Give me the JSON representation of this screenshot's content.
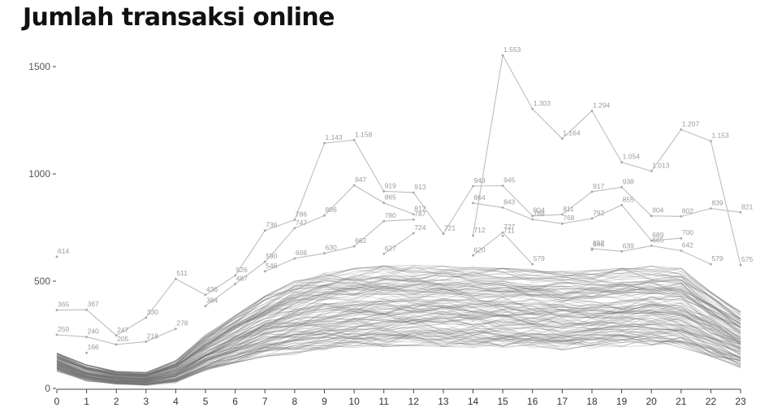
{
  "chart_data": {
    "type": "line",
    "title": "Jumlah transaksi online",
    "xlabel": "",
    "ylabel": "",
    "x": [
      0,
      1,
      2,
      3,
      4,
      5,
      6,
      7,
      8,
      9,
      10,
      11,
      12,
      13,
      14,
      15,
      16,
      17,
      18,
      19,
      20,
      21,
      22,
      23
    ],
    "xlim": [
      0,
      23
    ],
    "ylim": [
      0,
      1600
    ],
    "yticks": [
      0,
      500,
      1000,
      1500
    ],
    "grid": false,
    "background_band": {
      "description": "many overlapping gray series; envelope shown as representative values",
      "x": [
        0,
        1,
        2,
        3,
        4,
        5,
        6,
        7,
        8,
        9,
        10,
        11,
        12,
        13,
        14,
        15,
        16,
        17,
        18,
        19,
        20,
        21,
        22,
        23
      ],
      "upper": [
        165,
        110,
        80,
        75,
        130,
        250,
        340,
        430,
        500,
        540,
        560,
        570,
        575,
        570,
        565,
        560,
        555,
        545,
        550,
        560,
        570,
        560,
        450,
        360
      ],
      "lower": [
        80,
        35,
        20,
        15,
        25,
        80,
        120,
        150,
        160,
        180,
        190,
        195,
        200,
        195,
        190,
        190,
        185,
        180,
        185,
        195,
        200,
        190,
        150,
        95
      ]
    },
    "series": [
      {
        "values": [
          250,
          240,
          205,
          218,
          278,
          null,
          null,
          null,
          null,
          null,
          null,
          null,
          null,
          null,
          null,
          null,
          null,
          null,
          null,
          null,
          null,
          null,
          null,
          null
        ]
      },
      {
        "values": [
          365,
          367,
          247,
          330,
          511,
          436,
          526,
          736,
          786,
          1143,
          1158,
          919,
          913,
          721,
          943,
          945,
          804,
          811,
          917,
          938,
          804,
          802,
          839,
          821
        ]
      },
      {
        "values": [
          614,
          null,
          null,
          null,
          null,
          384,
          487,
          590,
          747,
          806,
          947,
          865,
          812,
          null,
          864,
          843,
          788,
          768,
          792,
          855,
          689,
          700,
          null,
          null
        ]
      },
      {
        "values": [
          null,
          166,
          null,
          null,
          null,
          null,
          null,
          546,
          606,
          630,
          662,
          780,
          787,
          null,
          712,
          1553,
          1303,
          1164,
          1294,
          1054,
          1013,
          1207,
          1153,
          575
        ]
      },
      {
        "values": [
          null,
          null,
          null,
          null,
          null,
          null,
          null,
          null,
          null,
          null,
          null,
          627,
          724,
          null,
          620,
          727,
          579,
          null,
          652,
          639,
          665,
          642,
          579,
          null
        ]
      },
      {
        "values": [
          null,
          null,
          null,
          null,
          null,
          null,
          null,
          null,
          null,
          null,
          null,
          null,
          null,
          null,
          null,
          711,
          null,
          null,
          646,
          null,
          null,
          null,
          null,
          null
        ]
      }
    ],
    "point_labels": [
      {
        "x": 0,
        "y": 614,
        "text": "614"
      },
      {
        "x": 0,
        "y": 365,
        "text": "365"
      },
      {
        "x": 0,
        "y": 250,
        "text": "250"
      },
      {
        "x": 1,
        "y": 367,
        "text": "367"
      },
      {
        "x": 1,
        "y": 240,
        "text": "240"
      },
      {
        "x": 1,
        "y": 166,
        "text": "166"
      },
      {
        "x": 2,
        "y": 247,
        "text": "247"
      },
      {
        "x": 2,
        "y": 205,
        "text": "205"
      },
      {
        "x": 3,
        "y": 330,
        "text": "330"
      },
      {
        "x": 3,
        "y": 218,
        "text": "218"
      },
      {
        "x": 4,
        "y": 511,
        "text": "511"
      },
      {
        "x": 4,
        "y": 278,
        "text": "278"
      },
      {
        "x": 5,
        "y": 436,
        "text": "436"
      },
      {
        "x": 5,
        "y": 384,
        "text": "384"
      },
      {
        "x": 6,
        "y": 526,
        "text": "526"
      },
      {
        "x": 6,
        "y": 487,
        "text": "487"
      },
      {
        "x": 7,
        "y": 736,
        "text": "736"
      },
      {
        "x": 7,
        "y": 590,
        "text": "590"
      },
      {
        "x": 7,
        "y": 546,
        "text": "546"
      },
      {
        "x": 8,
        "y": 786,
        "text": "786"
      },
      {
        "x": 8,
        "y": 747,
        "text": "747"
      },
      {
        "x": 8,
        "y": 606,
        "text": "606"
      },
      {
        "x": 9,
        "y": 1143,
        "text": "1.143"
      },
      {
        "x": 9,
        "y": 806,
        "text": "806"
      },
      {
        "x": 9,
        "y": 630,
        "text": "630"
      },
      {
        "x": 10,
        "y": 1158,
        "text": "1.158"
      },
      {
        "x": 10,
        "y": 947,
        "text": "947"
      },
      {
        "x": 10,
        "y": 662,
        "text": "662"
      },
      {
        "x": 11,
        "y": 919,
        "text": "919"
      },
      {
        "x": 11,
        "y": 865,
        "text": "865"
      },
      {
        "x": 11,
        "y": 780,
        "text": "780"
      },
      {
        "x": 11,
        "y": 627,
        "text": "627"
      },
      {
        "x": 12,
        "y": 913,
        "text": "913"
      },
      {
        "x": 12,
        "y": 812,
        "text": "812"
      },
      {
        "x": 12,
        "y": 787,
        "text": "787"
      },
      {
        "x": 12,
        "y": 724,
        "text": "724"
      },
      {
        "x": 13,
        "y": 721,
        "text": "721"
      },
      {
        "x": 14,
        "y": 943,
        "text": "943"
      },
      {
        "x": 14,
        "y": 864,
        "text": "864"
      },
      {
        "x": 14,
        "y": 712,
        "text": "712"
      },
      {
        "x": 14,
        "y": 620,
        "text": "620"
      },
      {
        "x": 15,
        "y": 1553,
        "text": "1.553"
      },
      {
        "x": 15,
        "y": 945,
        "text": "945"
      },
      {
        "x": 15,
        "y": 843,
        "text": "843"
      },
      {
        "x": 15,
        "y": 727,
        "text": "727"
      },
      {
        "x": 15,
        "y": 711,
        "text": "711"
      },
      {
        "x": 16,
        "y": 1303,
        "text": "1.303"
      },
      {
        "x": 16,
        "y": 804,
        "text": "804"
      },
      {
        "x": 16,
        "y": 788,
        "text": "788"
      },
      {
        "x": 16,
        "y": 579,
        "text": "579"
      },
      {
        "x": 17,
        "y": 1164,
        "text": "1.164"
      },
      {
        "x": 17,
        "y": 811,
        "text": "811"
      },
      {
        "x": 17,
        "y": 768,
        "text": "768"
      },
      {
        "x": 18,
        "y": 1294,
        "text": "1.294"
      },
      {
        "x": 18,
        "y": 917,
        "text": "917"
      },
      {
        "x": 18,
        "y": 792,
        "text": "792"
      },
      {
        "x": 18,
        "y": 652,
        "text": "652"
      },
      {
        "x": 18,
        "y": 646,
        "text": "646"
      },
      {
        "x": 19,
        "y": 1054,
        "text": "1.054"
      },
      {
        "x": 19,
        "y": 938,
        "text": "938"
      },
      {
        "x": 19,
        "y": 855,
        "text": "855"
      },
      {
        "x": 19,
        "y": 639,
        "text": "639"
      },
      {
        "x": 20,
        "y": 1013,
        "text": "1.013"
      },
      {
        "x": 20,
        "y": 804,
        "text": "804"
      },
      {
        "x": 20,
        "y": 689,
        "text": "689"
      },
      {
        "x": 20,
        "y": 665,
        "text": "665"
      },
      {
        "x": 21,
        "y": 1207,
        "text": "1.207"
      },
      {
        "x": 21,
        "y": 802,
        "text": "802"
      },
      {
        "x": 21,
        "y": 700,
        "text": "700"
      },
      {
        "x": 21,
        "y": 642,
        "text": "642"
      },
      {
        "x": 22,
        "y": 1153,
        "text": "1.153"
      },
      {
        "x": 22,
        "y": 839,
        "text": "839"
      },
      {
        "x": 22,
        "y": 579,
        "text": "579"
      },
      {
        "x": 23,
        "y": 821,
        "text": "821"
      },
      {
        "x": 23,
        "y": 575,
        "text": "575"
      }
    ],
    "colors": {
      "background_series": "#707070",
      "highlight_series": "#bdbdbd",
      "labels": "#9a9a9a",
      "axis": "#444444"
    }
  }
}
